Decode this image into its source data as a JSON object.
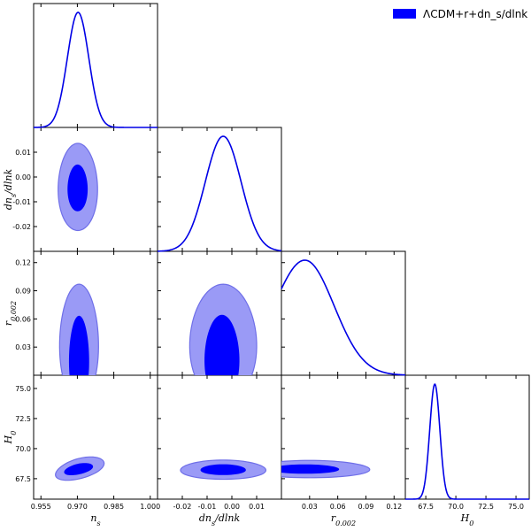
{
  "chart_data": {
    "type": "triangle-corner-plot",
    "legend": {
      "label": "ΛCDM+r+dn_s/dlnk",
      "color": "#0000ff",
      "placement": "top-right"
    },
    "parameters": [
      {
        "key": "ns",
        "label": "n_s",
        "range": [
          0.952,
          1.003
        ],
        "ticks": [
          "0.955",
          "0.970",
          "0.985",
          "1.000"
        ]
      },
      {
        "key": "dns",
        "label": "dn_s/dlnk",
        "range": [
          -0.03,
          0.02
        ],
        "ticks": [
          "-0.02",
          "-0.01",
          "0.00",
          "0.01"
        ]
      },
      {
        "key": "r",
        "label": "r_{0.002}",
        "range": [
          0.0,
          0.132
        ],
        "ticks": [
          "0.03",
          "0.06",
          "0.09",
          "0.12"
        ]
      },
      {
        "key": "H0",
        "label": "H_0",
        "range": [
          65.8,
          76.1
        ],
        "ticks": [
          "67.5",
          "70.0",
          "72.5",
          "75.0"
        ]
      }
    ],
    "marginals": [
      {
        "param": "ns",
        "shape": "gaussian",
        "mean": 0.9703,
        "sigma": 0.0044
      },
      {
        "param": "dns",
        "shape": "gaussian",
        "mean": -0.0035,
        "sigma": 0.0072
      },
      {
        "param": "r",
        "shape": "skewed",
        "peak": 0.025,
        "tail_to": 0.12
      },
      {
        "param": "H0",
        "shape": "gaussian",
        "mean": 68.25,
        "sigma": 0.42
      }
    ],
    "contours": [
      {
        "x": "ns",
        "y": "dns",
        "c68": [
          0.9701,
          -0.0044,
          0.004,
          0.0093
        ],
        "c95": [
          0.9702,
          -0.004,
          0.0081,
          0.0176
        ]
      },
      {
        "x": "ns",
        "y": "r",
        "c68": [
          0.9707,
          0.0175,
          0.004,
          0.0455
        ],
        "c95": [
          0.9707,
          0.035,
          0.008,
          0.062
        ]
      },
      {
        "x": "dns",
        "y": "r",
        "c68": [
          -0.004,
          0.0185,
          0.0069,
          0.0455
        ],
        "c95": [
          -0.0035,
          0.035,
          0.0135,
          0.062
        ]
      },
      {
        "x": "ns",
        "y": "H0",
        "c68": [
          0.9705,
          68.3,
          0.0058,
          0.42
        ],
        "c95": [
          0.971,
          68.35,
          0.01,
          0.85
        ],
        "tilt": 0.55
      },
      {
        "x": "dns",
        "y": "H0",
        "c68": [
          -0.0035,
          68.25,
          0.009,
          0.42
        ],
        "c95": [
          -0.0035,
          68.25,
          0.0172,
          0.8
        ]
      },
      {
        "x": "r",
        "y": "H0",
        "c68": [
          0.025,
          68.3,
          0.036,
          0.36
        ],
        "c95": [
          0.03,
          68.3,
          0.064,
          0.72
        ]
      }
    ],
    "grid": false
  }
}
